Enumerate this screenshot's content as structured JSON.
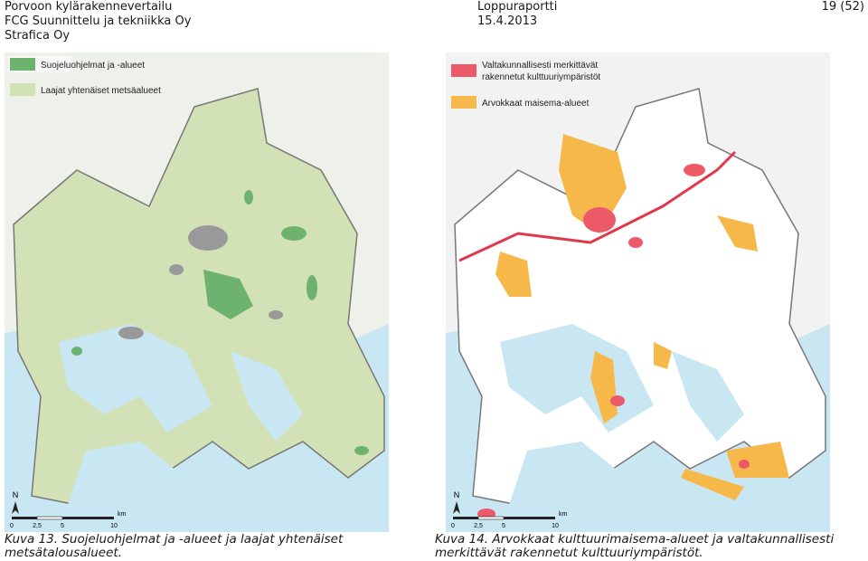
{
  "header": {
    "left": [
      "Porvoon kylärakennevertailu",
      "FCG Suunnittelu ja tekniikka Oy",
      "Strafica Oy"
    ],
    "center": [
      "Loppuraportti",
      "15.4.2013"
    ],
    "right": "19 (52)"
  },
  "figures": [
    {
      "legend": [
        {
          "label": [
            "Suojeluohjelmat ja -alueet"
          ],
          "color": "#6db36f"
        },
        {
          "label": [
            "Laajat yhtenäiset metsäalueet"
          ],
          "color": "#d3e2b6"
        }
      ],
      "north": "N",
      "scale": {
        "labels": [
          "0",
          "2,5",
          "5",
          "10"
        ],
        "unit": "km"
      },
      "caption": [
        "Kuva 13. Suojeluohjelmat ja -alueet ja laajat yhtenäiset",
        "metsätalousalueet."
      ]
    },
    {
      "legend": [
        {
          "label": [
            "Valtakunnallisesti merkittävät",
            "rakennetut kulttuuriympäristöt"
          ],
          "color": "#ec5a6a"
        },
        {
          "label": [
            "Arvokkaat maisema-alueet"
          ],
          "color": "#f6b949"
        }
      ],
      "north": "N",
      "scale": {
        "labels": [
          "0",
          "2,5",
          "5",
          "10"
        ],
        "unit": "km"
      },
      "caption": [
        "Kuva 14. Arvokkaat kulttuurimaisema-alueet ja valtakunnallisesti",
        "merkittävät rakennetut kulttuuriympäristöt."
      ]
    }
  ]
}
